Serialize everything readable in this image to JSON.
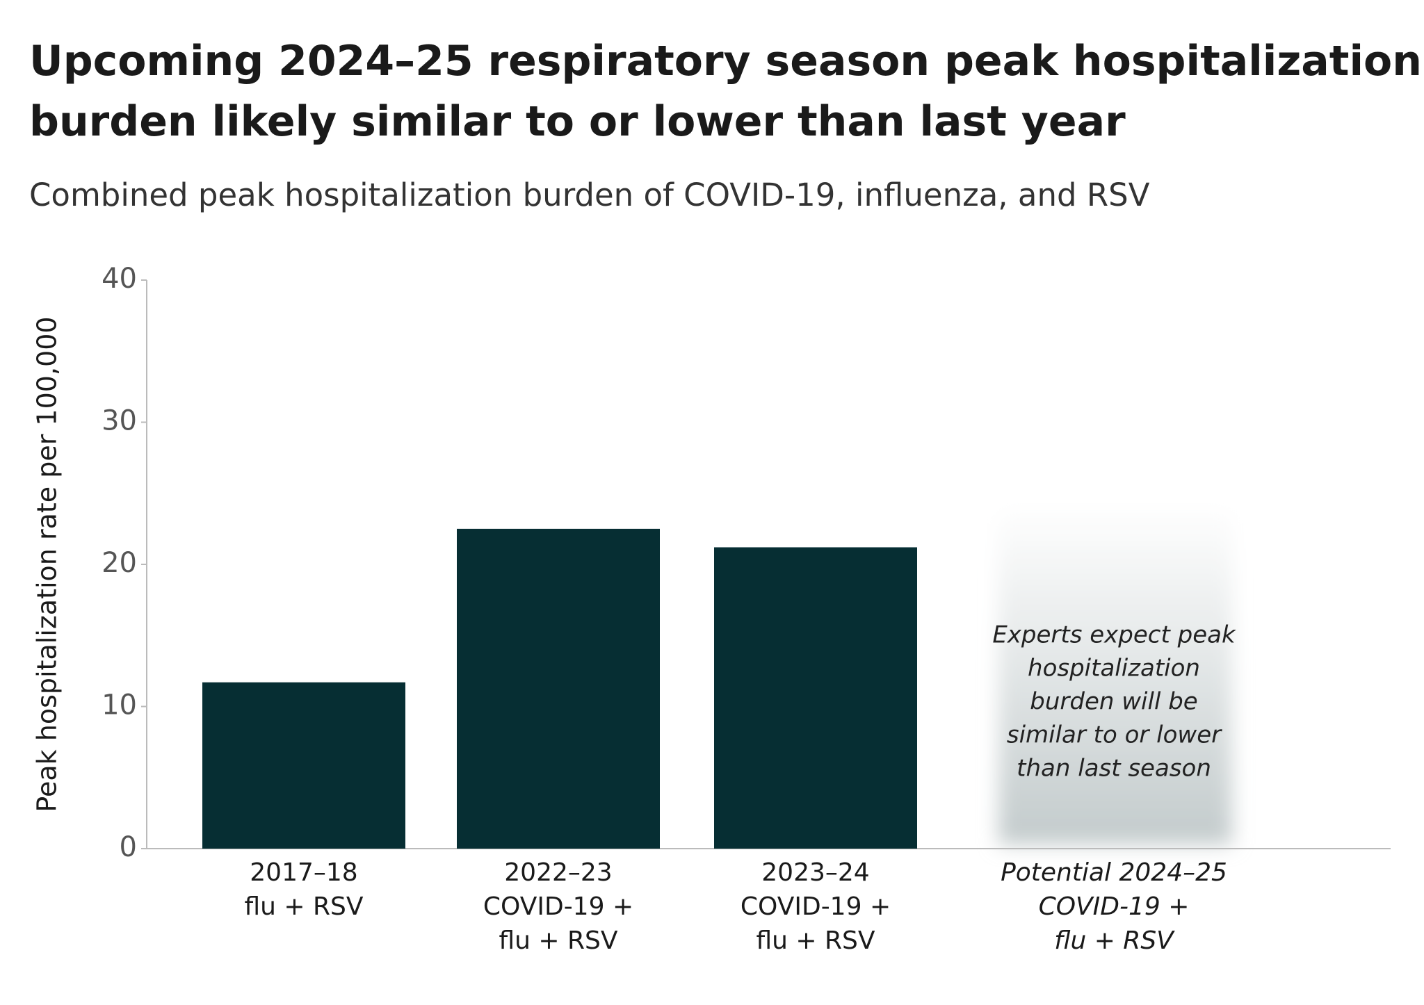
{
  "chart_data": {
    "type": "bar",
    "title": [
      "Upcoming 2024–25 respiratory season peak hospitalization",
      "burden likely similar to or lower than last year"
    ],
    "subtitle": "Combined peak hospitalization burden of COVID-19, influenza, and RSV",
    "y_label": "Peak hospitalization rate per 100,000",
    "categories": [
      [
        "2017–18",
        "flu + RSV"
      ],
      [
        "2022–23",
        "COVID-19 +",
        "flu + RSV"
      ],
      [
        "2023–24",
        "COVID-19 +",
        "flu + RSV"
      ],
      [
        "Potential 2024–25",
        "COVID-19 +",
        "flu + RSV"
      ]
    ],
    "values": [
      11.7,
      22.5,
      21.2,
      null
    ],
    "color": "#062e33",
    "ylim": [
      0,
      40
    ],
    "yticks": [
      0,
      10,
      20,
      30,
      40
    ],
    "grid": false,
    "annotation": [
      "Experts expect peak",
      "hospitalization",
      "burden will be",
      "similar to or lower",
      "than last season"
    ]
  }
}
